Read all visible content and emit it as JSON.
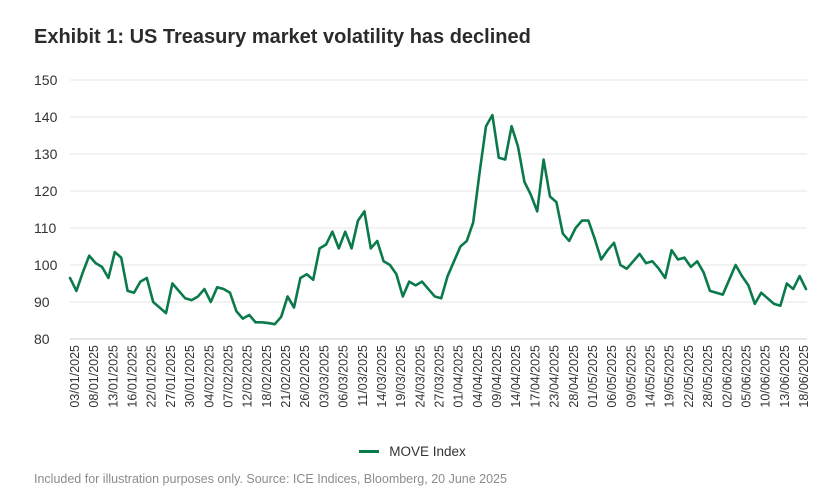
{
  "title": "Exhibit 1: US Treasury market volatility has declined",
  "source": "Included for illustration purposes only. Source: ICE Indices, Bloomberg, 20 June 2025",
  "colors": {
    "line": "#0b7a4a",
    "grid": "#e6e6e6",
    "text": "#333333"
  },
  "chart_data": {
    "type": "line",
    "title": "Exhibit 1: US Treasury market volatility has declined",
    "xlabel": "",
    "ylabel": "",
    "ylim": [
      80,
      150
    ],
    "yticks": [
      80,
      90,
      100,
      110,
      120,
      130,
      140,
      150
    ],
    "grid": true,
    "legend": "bottom-center",
    "x_tick_labels": [
      "03/01/2025",
      "08/01/2025",
      "13/01/2025",
      "16/01/2025",
      "22/01/2025",
      "27/01/2025",
      "30/01/2025",
      "04/02/2025",
      "07/02/2025",
      "12/02/2025",
      "18/02/2025",
      "21/02/2025",
      "26/02/2025",
      "03/03/2025",
      "06/03/2025",
      "11/03/2025",
      "14/03/2025",
      "19/03/2025",
      "24/03/2025",
      "27/03/2025",
      "01/04/2025",
      "04/04/2025",
      "09/04/2025",
      "14/04/2025",
      "17/04/2025",
      "23/04/2025",
      "28/04/2025",
      "01/05/2025",
      "06/05/2025",
      "09/05/2025",
      "14/05/2025",
      "19/05/2025",
      "22/05/2025",
      "28/05/2025",
      "02/06/2025",
      "05/06/2025",
      "10/06/2025",
      "13/06/2025",
      "18/06/2025"
    ],
    "series": [
      {
        "name": "MOVE Index",
        "values": [
          96.5,
          93,
          98,
          102.5,
          100.5,
          99.5,
          96.5,
          103.5,
          102,
          93,
          92.5,
          95.5,
          96.5,
          90,
          88.5,
          87,
          95,
          93,
          91,
          90.5,
          91.5,
          93.5,
          90,
          94,
          93.5,
          92.5,
          87.5,
          85.5,
          86.5,
          84.5,
          84.5,
          84.3,
          84,
          86,
          91.5,
          88.5,
          96.5,
          97.5,
          96,
          104.5,
          105.5,
          109,
          104.5,
          109,
          104.5,
          112,
          114.5,
          104.5,
          106.5,
          101,
          100,
          97.5,
          91.5,
          95.5,
          94.5,
          95.5,
          93.5,
          91.5,
          91,
          97,
          101,
          105,
          106.5,
          111.5,
          125,
          137.5,
          140.5,
          129,
          128.5,
          137.5,
          132,
          122.5,
          119,
          114.5,
          128.5,
          118.5,
          117,
          108.5,
          106.5,
          110,
          112,
          112,
          107,
          101.5,
          104,
          106,
          100,
          99,
          101,
          103,
          100.5,
          101,
          99,
          96.5,
          104,
          101.5,
          102,
          99.5,
          101,
          98,
          93,
          92.5,
          92,
          96,
          100,
          97,
          94.5,
          89.5,
          92.5,
          91,
          89.5,
          89,
          95,
          93.5,
          97,
          93.5
        ]
      }
    ]
  }
}
